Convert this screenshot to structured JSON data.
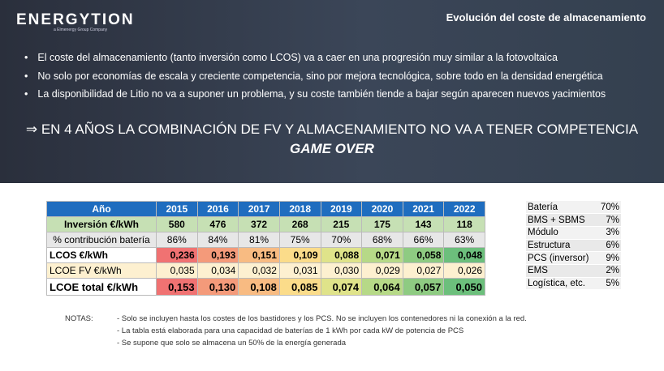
{
  "header": {
    "logo": "ENERGYTION",
    "logo_sub": "a Elmenergy Group Company",
    "title": "Evolución del coste de almacenamiento"
  },
  "bullets": [
    "El coste del almacenamiento (tanto inversión como LCOS) va a caer en una progresión muy similar a la fotovoltaica",
    "No solo por economías de escala y creciente competencia, sino por mejora tecnológica, sobre todo en la densidad energética",
    "La disponibilidad de Litio no va a suponer un problema, y su coste también tiende a bajar según aparecen nuevos yacimientos"
  ],
  "headline": {
    "line1": "⇒ EN 4 AÑOS LA COMBINACIÓN DE FV Y ALMACENAMIENTO NO VA A TENER COMPETENCIA",
    "line2": "GAME OVER"
  },
  "table": {
    "rows": [
      {
        "label": "Año",
        "values": [
          "2015",
          "2016",
          "2017",
          "2018",
          "2019",
          "2020",
          "2021",
          "2022"
        ]
      },
      {
        "label": "Inversión €/kWh",
        "values": [
          "580",
          "476",
          "372",
          "268",
          "215",
          "175",
          "143",
          "118"
        ]
      },
      {
        "label": "% contribución batería",
        "values": [
          "86%",
          "84%",
          "81%",
          "75%",
          "70%",
          "68%",
          "66%",
          "63%"
        ]
      },
      {
        "label": "LCOS €/kWh",
        "values": [
          "0,236",
          "0,193",
          "0,151",
          "0,109",
          "0,088",
          "0,071",
          "0,058",
          "0,048"
        ]
      },
      {
        "label": "LCOE FV €/kWh",
        "values": [
          "0,035",
          "0,034",
          "0,032",
          "0,031",
          "0,030",
          "0,029",
          "0,027",
          "0,026"
        ]
      },
      {
        "label": "LCOE total €/kWh",
        "values": [
          "0,153",
          "0,130",
          "0,108",
          "0,085",
          "0,074",
          "0,064",
          "0,057",
          "0,050"
        ]
      }
    ],
    "scale_colors": [
      "#f07272",
      "#f49a7a",
      "#f8bb82",
      "#fbdc8a",
      "#dfe38a",
      "#b6d987",
      "#8ecb82",
      "#6cbf7c"
    ]
  },
  "breakdown": [
    [
      "Batería",
      "70%"
    ],
    [
      "BMS + SBMS",
      "7%"
    ],
    [
      "Módulo",
      "3%"
    ],
    [
      "Estructura",
      "6%"
    ],
    [
      "PCS (inversor)",
      "9%"
    ],
    [
      "EMS",
      "2%"
    ],
    [
      "Logística, etc.",
      "5%"
    ]
  ],
  "notes": {
    "label": "NOTAS:",
    "lines": [
      "- Solo se incluyen hasta los costes de los bastidores y los PCS. No se incluyen los contenedores ni la conexión a la red.",
      "- La tabla está elaborada para una capacidad de baterías de 1 kWh por cada kW de potencia de PCS",
      "- Se supone que solo se almacena un 50% de la energía generada"
    ]
  }
}
